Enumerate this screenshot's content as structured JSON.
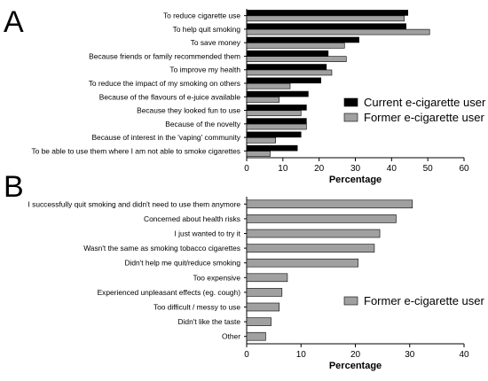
{
  "chart_data": [
    {
      "panel": "A",
      "type": "bar",
      "orientation": "horizontal",
      "categories": [
        "To reduce cigarette use",
        "To help quit smoking",
        "To save money",
        "Because friends or family recommended them",
        "To improve my health",
        "To reduce the impact of my smoking on others",
        "Because of the flavours of e-juice available",
        "Because they looked fun to use",
        "Because of the novelty",
        "Because of interest in the 'vaping' community",
        "To be able to use them where I am not able to smoke cigarettes"
      ],
      "series": [
        {
          "name": "Current e-cigarette user",
          "color": "#000000",
          "values": [
            44.5,
            44,
            31,
            22.5,
            22,
            20.5,
            17,
            16.5,
            16.5,
            15,
            14
          ]
        },
        {
          "name": "Former e-cigarette user",
          "color": "#a0a0a0",
          "values": [
            43.5,
            50.5,
            27,
            27.5,
            23.5,
            12,
            9,
            15,
            16.5,
            8,
            6.5
          ]
        }
      ],
      "xlabel": "Percentage",
      "xlim": [
        0,
        60
      ],
      "xticks": [
        "0",
        "10",
        "20",
        "30",
        "40",
        "50",
        "60"
      ],
      "legend": "right"
    },
    {
      "panel": "B",
      "type": "bar",
      "orientation": "horizontal",
      "categories": [
        "I successfully quit smoking and didn't need to use them anymore",
        "Concerned about health risks",
        "I just wanted to try it",
        "Wasn't the same as smoking tobacco cigarettes",
        "Didn't help me quit/reduce smoking",
        "Too expensive",
        "Experienced unpleasant effects (eg. cough)",
        "Too difficult / messy to use",
        "Didn't like the taste",
        "Other"
      ],
      "series": [
        {
          "name": "Former e-cigarette user",
          "color": "#a0a0a0",
          "values": [
            30.5,
            27.5,
            24.5,
            23.5,
            20.5,
            7.5,
            6.5,
            6,
            4.5,
            3.5
          ]
        }
      ],
      "xlabel": "Percentage",
      "xlim": [
        0,
        40
      ],
      "xticks": [
        "0",
        "10",
        "20",
        "30",
        "40"
      ],
      "legend": "right"
    }
  ]
}
